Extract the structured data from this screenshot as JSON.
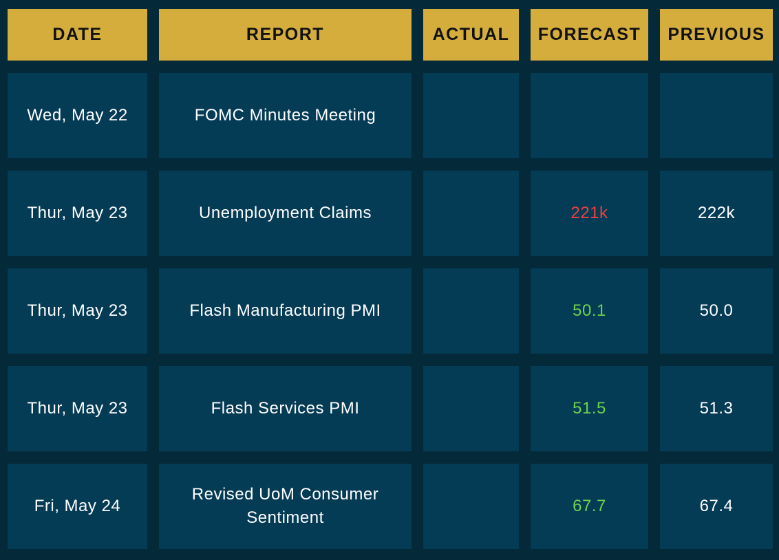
{
  "colors": {
    "page_background": "#042938",
    "cell_background": "#043B55",
    "header_background": "#D4AD3D",
    "header_text": "#111111",
    "body_text": "#FFFFFF",
    "forecast_worse": "#F23E3E",
    "forecast_better": "#6CD44C"
  },
  "chart_data": {
    "type": "table",
    "title": "",
    "columns": [
      "DATE",
      "REPORT",
      "ACTUAL",
      "FORECAST",
      "PREVIOUS"
    ],
    "rows": [
      [
        "Wed, May 22",
        "FOMC Minutes Meeting",
        "",
        "",
        ""
      ],
      [
        "Thur, May 23",
        "Unemployment Claims",
        "",
        "221k",
        "222k"
      ],
      [
        "Thur, May 23",
        "Flash Manufacturing PMI",
        "",
        "50.1",
        "50.0"
      ],
      [
        "Thur, May 23",
        "Flash Services PMI",
        "",
        "51.5",
        "51.3"
      ],
      [
        "Fri, May 24",
        "Revised UoM Consumer Sentiment",
        "",
        "67.7",
        "67.4"
      ]
    ],
    "forecast_value_colors": [
      "",
      "red",
      "green",
      "green",
      "green"
    ],
    "layout": "5-column grid table, gold header row, navy body cells, dark navy gutters"
  }
}
